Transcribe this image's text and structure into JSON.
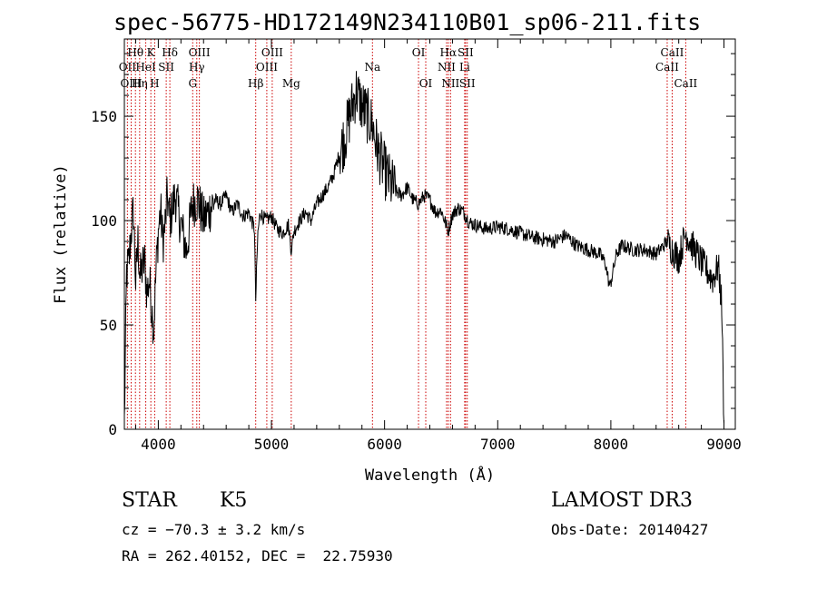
{
  "chart_data": {
    "type": "line",
    "title": "spec-56775-HD172149N234110B01_sp06-211.fits",
    "xlabel": "Wavelength (Å)",
    "ylabel": "Flux (relative)",
    "xlim": [
      3700,
      9100
    ],
    "ylim": [
      0,
      187
    ],
    "x_ticks": [
      4000,
      5000,
      6000,
      7000,
      8000,
      9000
    ],
    "y_ticks": [
      0,
      50,
      100,
      150
    ],
    "x_tick_labels": [
      "4000",
      "5000",
      "6000",
      "7000",
      "8000",
      "9000"
    ],
    "y_tick_labels": [
      "0",
      "50",
      "100",
      "150"
    ],
    "grid": false,
    "series": [
      {
        "color": "#000000",
        "x": [
          3700,
          3720,
          3740,
          3760,
          3780,
          3800,
          3820,
          3840,
          3860,
          3880,
          3900,
          3920,
          3940,
          3960,
          3980,
          4000,
          4020,
          4040,
          4060,
          4080,
          4100,
          4150,
          4200,
          4250,
          4300,
          4350,
          4400,
          4450,
          4500,
          4550,
          4600,
          4650,
          4700,
          4750,
          4800,
          4850,
          4861,
          4880,
          4900,
          4950,
          5000,
          5050,
          5100,
          5150,
          5175,
          5200,
          5250,
          5300,
          5350,
          5400,
          5450,
          5500,
          5550,
          5600,
          5650,
          5700,
          5750,
          5800,
          5850,
          5893,
          5920,
          5950,
          6000,
          6050,
          6100,
          6150,
          6200,
          6250,
          6300,
          6350,
          6400,
          6450,
          6500,
          6563,
          6600,
          6650,
          6700,
          6750,
          6800,
          6900,
          7000,
          7100,
          7200,
          7300,
          7400,
          7500,
          7600,
          7700,
          7800,
          7900,
          7950,
          7990,
          8050,
          8100,
          8200,
          8300,
          8400,
          8498,
          8542,
          8600,
          8662,
          8700,
          8800,
          8900,
          8950,
          8980,
          9000
        ],
        "y": [
          3,
          75,
          80,
          95,
          105,
          70,
          90,
          72,
          78,
          80,
          65,
          72,
          60,
          48,
          76,
          95,
          105,
          90,
          98,
          112,
          100,
          112,
          98,
          85,
          108,
          110,
          100,
          105,
          110,
          108,
          112,
          104,
          108,
          102,
          104,
          96,
          62,
          94,
          104,
          100,
          102,
          96,
          94,
          98,
          86,
          95,
          100,
          104,
          100,
          108,
          112,
          116,
          122,
          132,
          140,
          152,
          162,
          155,
          150,
          146,
          138,
          132,
          124,
          118,
          114,
          112,
          116,
          110,
          108,
          112,
          110,
          104,
          105,
          95,
          103,
          106,
          104,
          99,
          98,
          96,
          97,
          96,
          94,
          92,
          91,
          90,
          93,
          88,
          86,
          84,
          80,
          68,
          84,
          88,
          86,
          86,
          84,
          90,
          86,
          82,
          94,
          90,
          80,
          72,
          78,
          60,
          3
        ]
      }
    ],
    "annotations": [
      {
        "label": "Hθ",
        "x": 3798,
        "row": 1
      },
      {
        "label": "OII",
        "x": 3727,
        "row": 2
      },
      {
        "label": "OIII",
        "x": 3760,
        "row": 3
      },
      {
        "label": "K",
        "x": 3934,
        "row": 1
      },
      {
        "label": "HeI",
        "x": 3889,
        "row": 2
      },
      {
        "label": "Hη",
        "x": 3835,
        "row": 3
      },
      {
        "label": "SII",
        "x": 4070,
        "row": 2
      },
      {
        "label": "H",
        "x": 3968,
        "row": 3
      },
      {
        "label": "Hδ",
        "x": 4102,
        "row": 1
      },
      {
        "label": "OIII",
        "x": 4363,
        "row": 1
      },
      {
        "label": "Hγ",
        "x": 4340,
        "row": 2
      },
      {
        "label": "G",
        "x": 4304,
        "row": 3
      },
      {
        "label": "Hβ",
        "x": 4861,
        "row": 3
      },
      {
        "label": "OIII",
        "x": 5007,
        "row": 1
      },
      {
        "label": "OIII",
        "x": 4959,
        "row": 2
      },
      {
        "label": "Mg",
        "x": 5175,
        "row": 3
      },
      {
        "label": "Na",
        "x": 5893,
        "row": 2
      },
      {
        "label": "OI",
        "x": 6300,
        "row": 1
      },
      {
        "label": "OI",
        "x": 6364,
        "row": 3
      },
      {
        "label": "Hα",
        "x": 6563,
        "row": 1
      },
      {
        "label": "NII",
        "x": 6548,
        "row": 2
      },
      {
        "label": "NII",
        "x": 6583,
        "row": 3
      },
      {
        "label": "SII",
        "x": 6716,
        "row": 1
      },
      {
        "label": "Li",
        "x": 6708,
        "row": 2
      },
      {
        "label": "SII",
        "x": 6731,
        "row": 3
      },
      {
        "label": "CaII",
        "x": 8498,
        "row": 2
      },
      {
        "label": "CaII",
        "x": 8542,
        "row": 1
      },
      {
        "label": "CaII",
        "x": 8662,
        "row": 3
      }
    ],
    "line_positions": [
      3727,
      3760,
      3798,
      3835,
      3889,
      3934,
      3968,
      4070,
      4102,
      4304,
      4340,
      4363,
      4861,
      4959,
      5007,
      5175,
      5893,
      6300,
      6364,
      6548,
      6563,
      6583,
      6708,
      6716,
      6731,
      8498,
      8542,
      8662
    ]
  },
  "info": {
    "object_class": "STAR",
    "subclass": "K5",
    "survey": "LAMOST DR3",
    "redshift": "cz = −70.3 ± 3.2 km/s",
    "obs_date": "Obs-Date: 20140427",
    "coords": "RA = 262.40152, DEC =  22.75930"
  }
}
